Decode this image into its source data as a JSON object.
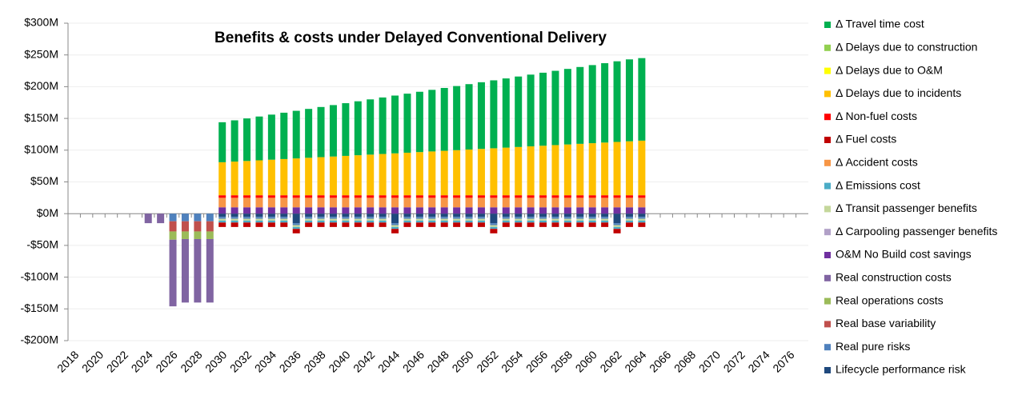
{
  "chart_data": {
    "type": "stacked_bar",
    "title": "Benefits & costs under Delayed Conventional Delivery",
    "categories": [
      "2018",
      null,
      "2020",
      null,
      "2022",
      null,
      "2024",
      null,
      "2026",
      null,
      "2028",
      null,
      "2030",
      null,
      "2032",
      null,
      "2034",
      null,
      "2036",
      null,
      "2038",
      null,
      "2040",
      null,
      "2042",
      null,
      "2044",
      null,
      "2046",
      null,
      "2048",
      null,
      "2050",
      null,
      "2052",
      null,
      "2054",
      null,
      "2056",
      null,
      "2058",
      null,
      "2060",
      null,
      "2062",
      null,
      "2064",
      null,
      "2066",
      null,
      "2068",
      null,
      "2070",
      null,
      "2072",
      null,
      "2074",
      null,
      "2076",
      null
    ],
    "ylim": [
      -200,
      300
    ],
    "yticks": [
      {
        "value": -200,
        "label": "-$200M"
      },
      {
        "value": -150,
        "label": "-$150M"
      },
      {
        "value": -100,
        "label": "-$100M"
      },
      {
        "value": -50,
        "label": "-$50M"
      },
      {
        "value": 0,
        "label": "$0M"
      },
      {
        "value": 50,
        "label": "$50M"
      },
      {
        "value": 100,
        "label": "$100M"
      },
      {
        "value": 150,
        "label": "$150M"
      },
      {
        "value": 200,
        "label": "$200M"
      },
      {
        "value": 250,
        "label": "$250M"
      },
      {
        "value": 300,
        "label": "$300M"
      }
    ],
    "grid": true,
    "series": [
      {
        "name": "Δ Travel time cost",
        "color": "#00b050",
        "values": [
          0,
          0,
          0,
          0,
          0,
          0,
          0,
          0,
          0,
          0,
          0,
          0,
          63,
          65,
          67,
          69,
          71,
          73,
          75,
          77,
          79,
          81,
          83,
          85,
          87,
          89,
          91,
          93,
          95,
          97,
          99,
          101,
          103,
          105,
          107,
          109,
          111,
          113,
          115,
          117,
          119,
          121,
          123,
          125,
          127,
          129,
          130,
          0,
          0,
          0,
          0,
          0,
          0,
          0,
          0,
          0,
          0,
          0,
          0,
          0
        ]
      },
      {
        "name": "Δ Delays due to construction",
        "color": "#92d050",
        "values": [
          0,
          0,
          0,
          0,
          0,
          0,
          0,
          0,
          0,
          0,
          0,
          0,
          0,
          0,
          0,
          0,
          0,
          0,
          0,
          0,
          0,
          0,
          0,
          0,
          0,
          0,
          0,
          0,
          0,
          0,
          0,
          0,
          0,
          0,
          0,
          0,
          0,
          0,
          0,
          0,
          0,
          0,
          0,
          0,
          0,
          0,
          0,
          0,
          0,
          0,
          0,
          0,
          0,
          0,
          0,
          0,
          0,
          0,
          0,
          0
        ]
      },
      {
        "name": "Δ Delays due to O&M",
        "color": "#ffff00",
        "values": [
          0,
          0,
          0,
          0,
          0,
          0,
          0,
          0,
          0,
          0,
          0,
          0,
          0,
          0,
          0,
          0,
          0,
          0,
          0,
          0,
          0,
          0,
          0,
          0,
          0,
          0,
          0,
          0,
          0,
          0,
          0,
          0,
          0,
          0,
          0,
          0,
          0,
          0,
          0,
          0,
          0,
          0,
          0,
          0,
          0,
          0,
          0,
          0,
          0,
          0,
          0,
          0,
          0,
          0,
          0,
          0,
          0,
          0,
          0,
          0
        ]
      },
      {
        "name": "Δ Delays due to incidents",
        "color": "#ffc000",
        "values": [
          0,
          0,
          0,
          0,
          0,
          0,
          0,
          0,
          0,
          0,
          0,
          0,
          52,
          53,
          54,
          55,
          56,
          57,
          58,
          59,
          60,
          61,
          62,
          63,
          64,
          65,
          66,
          67,
          68,
          69,
          70,
          71,
          72,
          73,
          74,
          75,
          76,
          77,
          78,
          79,
          80,
          81,
          82,
          83,
          84,
          85,
          86,
          0,
          0,
          0,
          0,
          0,
          0,
          0,
          0,
          0,
          0,
          0,
          0,
          0
        ]
      },
      {
        "name": "Δ Non-fuel  costs",
        "color": "#ff0000",
        "values": [
          0,
          0,
          0,
          0,
          0,
          0,
          0,
          0,
          0,
          0,
          0,
          0,
          4,
          4,
          4,
          4,
          4,
          4,
          4,
          4,
          4,
          4,
          4,
          4,
          4,
          4,
          4,
          4,
          4,
          4,
          4,
          4,
          4,
          4,
          4,
          4,
          4,
          4,
          4,
          4,
          4,
          4,
          4,
          4,
          4,
          4,
          4,
          0,
          0,
          0,
          0,
          0,
          0,
          0,
          0,
          0,
          0,
          0,
          0,
          0
        ]
      },
      {
        "name": "Δ Fuel costs",
        "color": "#c00000",
        "values": [
          0,
          0,
          0,
          0,
          0,
          0,
          0,
          0,
          0,
          0,
          0,
          0,
          -7,
          -7,
          -7,
          -7,
          -7,
          -7,
          -7,
          -7,
          -7,
          -7,
          -7,
          -7,
          -7,
          -7,
          -7,
          -7,
          -7,
          -7,
          -7,
          -7,
          -7,
          -7,
          -7,
          -7,
          -7,
          -7,
          -7,
          -7,
          -7,
          -7,
          -7,
          -7,
          -7,
          -7,
          -7,
          0,
          0,
          0,
          0,
          0,
          0,
          0,
          0,
          0,
          0,
          0,
          0,
          0
        ]
      },
      {
        "name": "Δ Accident  costs",
        "color": "#f79646",
        "values": [
          0,
          0,
          0,
          0,
          0,
          0,
          0,
          0,
          0,
          0,
          0,
          0,
          15,
          15,
          15,
          15,
          15,
          15,
          15,
          15,
          15,
          15,
          15,
          15,
          15,
          15,
          15,
          15,
          15,
          15,
          15,
          15,
          15,
          15,
          15,
          15,
          15,
          15,
          15,
          15,
          15,
          15,
          15,
          15,
          15,
          15,
          15,
          0,
          0,
          0,
          0,
          0,
          0,
          0,
          0,
          0,
          0,
          0,
          0,
          0
        ]
      },
      {
        "name": "Δ Emissions  cost",
        "color": "#4bacc6",
        "values": [
          0,
          0,
          0,
          0,
          0,
          0,
          0,
          0,
          0,
          0,
          0,
          0,
          -3,
          -3,
          -3,
          -3,
          -3,
          -3,
          -3,
          -3,
          -3,
          -3,
          -3,
          -3,
          -3,
          -3,
          -3,
          -3,
          -3,
          -3,
          -3,
          -3,
          -3,
          -3,
          -3,
          -3,
          -3,
          -3,
          -3,
          -3,
          -3,
          -3,
          -3,
          -3,
          -3,
          -3,
          -3,
          0,
          0,
          0,
          0,
          0,
          0,
          0,
          0,
          0,
          0,
          0,
          0,
          0
        ]
      },
      {
        "name": "Δ Transit passenger benefits",
        "color": "#c4d79b",
        "values": [
          0,
          0,
          0,
          0,
          0,
          0,
          0,
          0,
          0,
          0,
          0,
          0,
          -3,
          -3,
          -3,
          -3,
          -3,
          -3,
          -3,
          -3,
          -3,
          -3,
          -3,
          -3,
          -3,
          -3,
          -3,
          -3,
          -3,
          -3,
          -3,
          -3,
          -3,
          -3,
          -3,
          -3,
          -3,
          -3,
          -3,
          -3,
          -3,
          -3,
          -3,
          -3,
          -3,
          -3,
          -3,
          0,
          0,
          0,
          0,
          0,
          0,
          0,
          0,
          0,
          0,
          0,
          0,
          0
        ]
      },
      {
        "name": "Δ Carpooling passenger benefits",
        "color": "#b1a0c7",
        "values": [
          0,
          0,
          0,
          0,
          0,
          0,
          0,
          0,
          0,
          0,
          0,
          0,
          0,
          0,
          0,
          0,
          0,
          0,
          0,
          0,
          0,
          0,
          0,
          0,
          0,
          0,
          0,
          0,
          0,
          0,
          0,
          0,
          0,
          0,
          0,
          0,
          0,
          0,
          0,
          0,
          0,
          0,
          0,
          0,
          0,
          0,
          0,
          0,
          0,
          0,
          0,
          0,
          0,
          0,
          0,
          0,
          0,
          0,
          0,
          0
        ]
      },
      {
        "name": "O&M No Build cost savings",
        "color": "#7030a0",
        "values": [
          0,
          0,
          0,
          0,
          0,
          0,
          0,
          0,
          0,
          0,
          0,
          0,
          10,
          10,
          10,
          10,
          10,
          10,
          10,
          10,
          10,
          10,
          10,
          10,
          10,
          10,
          10,
          10,
          10,
          10,
          10,
          10,
          10,
          10,
          10,
          10,
          10,
          10,
          10,
          10,
          10,
          10,
          10,
          10,
          10,
          10,
          10,
          0,
          0,
          0,
          0,
          0,
          0,
          0,
          0,
          0,
          0,
          0,
          0,
          0
        ]
      },
      {
        "name": "Real construction costs",
        "color": "#8064a2",
        "values": [
          0,
          0,
          0,
          0,
          0,
          0,
          -15,
          -15,
          -105,
          -100,
          -100,
          -100,
          0,
          0,
          0,
          0,
          0,
          0,
          0,
          0,
          0,
          0,
          0,
          0,
          0,
          0,
          0,
          0,
          0,
          0,
          0,
          0,
          0,
          0,
          0,
          0,
          0,
          0,
          0,
          0,
          0,
          0,
          0,
          0,
          0,
          0,
          0,
          0,
          0,
          0,
          0,
          0,
          0,
          0,
          0,
          0,
          0,
          0,
          0,
          0
        ]
      },
      {
        "name": "Real operations costs",
        "color": "#9bbb59",
        "values": [
          0,
          0,
          0,
          0,
          0,
          0,
          0,
          0,
          -13,
          -12,
          -12,
          -12,
          0,
          0,
          0,
          0,
          0,
          0,
          0,
          0,
          0,
          0,
          0,
          0,
          0,
          0,
          0,
          0,
          0,
          0,
          0,
          0,
          0,
          0,
          0,
          0,
          0,
          0,
          0,
          0,
          0,
          0,
          0,
          0,
          0,
          0,
          0,
          0,
          0,
          0,
          0,
          0,
          0,
          0,
          0,
          0,
          0,
          0,
          0,
          0
        ]
      },
      {
        "name": "Real base variability",
        "color": "#c0504d",
        "values": [
          0,
          0,
          0,
          0,
          0,
          0,
          0,
          0,
          -16,
          -16,
          -16,
          -16,
          0,
          0,
          0,
          0,
          0,
          0,
          0,
          0,
          0,
          0,
          0,
          0,
          0,
          0,
          0,
          0,
          0,
          0,
          0,
          0,
          0,
          0,
          0,
          0,
          0,
          0,
          0,
          0,
          0,
          0,
          0,
          0,
          0,
          0,
          0,
          0,
          0,
          0,
          0,
          0,
          0,
          0,
          0,
          0,
          0,
          0,
          0,
          0
        ]
      },
      {
        "name": "Real pure risks",
        "color": "#4f81bd",
        "values": [
          0,
          0,
          0,
          0,
          0,
          0,
          0,
          0,
          -12,
          -12,
          -12,
          -12,
          -3,
          -3,
          -3,
          -3,
          -3,
          -3,
          -3,
          -3,
          -3,
          -3,
          -3,
          -3,
          -3,
          -3,
          -3,
          -3,
          -3,
          -3,
          -3,
          -3,
          -3,
          -3,
          -3,
          -3,
          -3,
          -3,
          -3,
          -3,
          -3,
          -3,
          -3,
          -3,
          -3,
          -3,
          -3,
          0,
          0,
          0,
          0,
          0,
          0,
          0,
          0,
          0,
          0,
          0,
          0,
          0
        ]
      },
      {
        "name": "Lifecycle performance risk",
        "color": "#1f497d",
        "values": [
          0,
          0,
          0,
          0,
          0,
          0,
          0,
          0,
          0,
          0,
          0,
          0,
          -5,
          -5,
          -5,
          -5,
          -5,
          -5,
          -15,
          -5,
          -5,
          -5,
          -5,
          -5,
          -5,
          -5,
          -15,
          -5,
          -5,
          -5,
          -5,
          -5,
          -5,
          -5,
          -15,
          -5,
          -5,
          -5,
          -5,
          -5,
          -5,
          -5,
          -5,
          -5,
          -15,
          -5,
          -5,
          0,
          0,
          0,
          0,
          0,
          0,
          0,
          0,
          0,
          0,
          0,
          0,
          0
        ]
      }
    ]
  }
}
